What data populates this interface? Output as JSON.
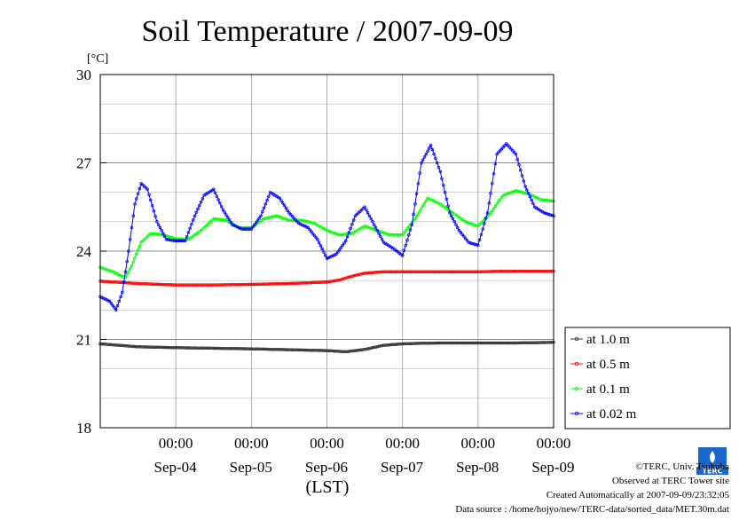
{
  "chart_data": {
    "type": "line",
    "title": "Soil Temperature / 2007-09-09",
    "unit_label": "[°C]",
    "xlabel": "(LST)",
    "ylim": [
      18,
      30
    ],
    "yticks": [
      18,
      21,
      24,
      27,
      30
    ],
    "x_tick_labels": [
      "00:00",
      "00:00",
      "00:00",
      "00:00",
      "00:00",
      "00:00"
    ],
    "x_day_labels": [
      "Sep-04",
      "Sep-05",
      "Sep-06",
      "Sep-07",
      "Sep-08",
      "Sep-09"
    ],
    "x_range_hours": [
      0,
      144
    ],
    "legend_position": "right",
    "series": [
      {
        "name": "at 1.0 m",
        "color": "#333333",
        "points": [
          [
            0,
            20.85
          ],
          [
            12,
            20.75
          ],
          [
            24,
            20.72
          ],
          [
            36,
            20.7
          ],
          [
            48,
            20.68
          ],
          [
            60,
            20.65
          ],
          [
            72,
            20.62
          ],
          [
            78,
            20.58
          ],
          [
            84,
            20.66
          ],
          [
            90,
            20.8
          ],
          [
            96,
            20.85
          ],
          [
            102,
            20.87
          ],
          [
            108,
            20.88
          ],
          [
            120,
            20.88
          ],
          [
            132,
            20.88
          ],
          [
            144,
            20.9
          ]
        ]
      },
      {
        "name": "at 0.5 m",
        "color": "#ff0000",
        "points": [
          [
            0,
            22.98
          ],
          [
            12,
            22.9
          ],
          [
            24,
            22.85
          ],
          [
            36,
            22.85
          ],
          [
            48,
            22.87
          ],
          [
            60,
            22.9
          ],
          [
            72,
            22.95
          ],
          [
            76,
            23.02
          ],
          [
            80,
            23.15
          ],
          [
            84,
            23.25
          ],
          [
            90,
            23.3
          ],
          [
            96,
            23.3
          ],
          [
            108,
            23.3
          ],
          [
            120,
            23.3
          ],
          [
            132,
            23.32
          ],
          [
            144,
            23.32
          ]
        ]
      },
      {
        "name": "at 0.1 m",
        "color": "#00ff00",
        "points": [
          [
            0,
            23.45
          ],
          [
            4,
            23.3
          ],
          [
            8,
            23.1
          ],
          [
            10,
            23.5
          ],
          [
            13,
            24.3
          ],
          [
            16,
            24.6
          ],
          [
            20,
            24.55
          ],
          [
            24,
            24.42
          ],
          [
            28,
            24.4
          ],
          [
            32,
            24.7
          ],
          [
            36,
            25.1
          ],
          [
            40,
            25.05
          ],
          [
            44,
            24.8
          ],
          [
            48,
            24.8
          ],
          [
            52,
            25.1
          ],
          [
            56,
            25.2
          ],
          [
            60,
            25.05
          ],
          [
            64,
            25.05
          ],
          [
            68,
            24.95
          ],
          [
            72,
            24.7
          ],
          [
            76,
            24.55
          ],
          [
            80,
            24.6
          ],
          [
            84,
            24.85
          ],
          [
            88,
            24.7
          ],
          [
            92,
            24.55
          ],
          [
            96,
            24.55
          ],
          [
            100,
            25.1
          ],
          [
            104,
            25.8
          ],
          [
            108,
            25.6
          ],
          [
            112,
            25.3
          ],
          [
            116,
            25.0
          ],
          [
            120,
            24.85
          ],
          [
            124,
            25.3
          ],
          [
            128,
            25.9
          ],
          [
            132,
            26.05
          ],
          [
            136,
            25.95
          ],
          [
            140,
            25.75
          ],
          [
            144,
            25.7
          ]
        ]
      },
      {
        "name": "at 0.02 m",
        "color": "#0000ff",
        "points": [
          [
            0,
            22.45
          ],
          [
            3,
            22.3
          ],
          [
            5,
            22.0
          ],
          [
            7,
            22.6
          ],
          [
            9,
            24.0
          ],
          [
            11,
            25.6
          ],
          [
            13,
            26.3
          ],
          [
            15,
            26.1
          ],
          [
            18,
            25.0
          ],
          [
            21,
            24.4
          ],
          [
            24,
            24.35
          ],
          [
            27,
            24.35
          ],
          [
            30,
            25.2
          ],
          [
            33,
            25.9
          ],
          [
            36,
            26.1
          ],
          [
            39,
            25.4
          ],
          [
            42,
            24.9
          ],
          [
            45,
            24.75
          ],
          [
            48,
            24.75
          ],
          [
            51,
            25.2
          ],
          [
            54,
            26.0
          ],
          [
            57,
            25.8
          ],
          [
            60,
            25.3
          ],
          [
            63,
            24.95
          ],
          [
            66,
            24.8
          ],
          [
            69,
            24.4
          ],
          [
            72,
            23.75
          ],
          [
            75,
            23.9
          ],
          [
            78,
            24.35
          ],
          [
            81,
            25.2
          ],
          [
            84,
            25.5
          ],
          [
            87,
            24.9
          ],
          [
            90,
            24.3
          ],
          [
            93,
            24.1
          ],
          [
            96,
            23.85
          ],
          [
            99,
            24.9
          ],
          [
            102,
            27.0
          ],
          [
            105,
            27.6
          ],
          [
            108,
            26.7
          ],
          [
            111,
            25.3
          ],
          [
            114,
            24.7
          ],
          [
            117,
            24.3
          ],
          [
            120,
            24.2
          ],
          [
            123,
            25.3
          ],
          [
            126,
            27.3
          ],
          [
            129,
            27.65
          ],
          [
            132,
            27.3
          ],
          [
            135,
            26.2
          ],
          [
            138,
            25.5
          ],
          [
            141,
            25.3
          ],
          [
            144,
            25.2
          ]
        ]
      }
    ]
  },
  "footer": {
    "copyright": "©TERC, Univ. Tsukuba",
    "observed": "Observed at TERC Tower site",
    "created": "Created Automatically at 2007-09-09/23:32:05",
    "source": "Data source : /home/hojyo/new/TERC-data/sorted_data/MET.30m.dat"
  },
  "logo": {
    "text": "TERC",
    "color": "#1a66cc"
  }
}
